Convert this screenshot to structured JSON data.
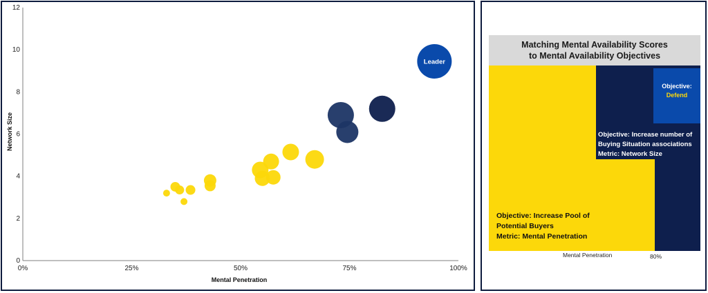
{
  "colors": {
    "yellow": "#fcd80a",
    "navy": "#0e1f4d",
    "blue": "#0a4aab",
    "gray": "#d9d9d9",
    "border": "#0d1b3e"
  },
  "chart_data": [
    {
      "type": "scatter",
      "xlabel": "Mental Penetration",
      "ylabel": "Network Size",
      "xlim": [
        0,
        100
      ],
      "ylim": [
        0,
        12
      ],
      "x_ticks": [
        "0%",
        "25%",
        "50%",
        "75%",
        "100%"
      ],
      "y_ticks": [
        "0",
        "2",
        "4",
        "6",
        "8",
        "10",
        "12"
      ],
      "grid": false,
      "points": [
        {
          "x": 33,
          "y": 3.2,
          "size": 5,
          "color": "#fcd80a"
        },
        {
          "x": 35,
          "y": 3.5,
          "size": 7,
          "color": "#fcd80a"
        },
        {
          "x": 36,
          "y": 3.35,
          "size": 6.5,
          "color": "#fcd80a"
        },
        {
          "x": 37,
          "y": 2.8,
          "size": 5,
          "color": "#fcd80a"
        },
        {
          "x": 38.5,
          "y": 3.35,
          "size": 7,
          "color": "#fcd80a"
        },
        {
          "x": 43,
          "y": 3.8,
          "size": 9,
          "color": "#fcd80a"
        },
        {
          "x": 43,
          "y": 3.55,
          "size": 8,
          "color": "#fcd80a"
        },
        {
          "x": 54.5,
          "y": 4.3,
          "size": 12,
          "color": "#fcd80a"
        },
        {
          "x": 55,
          "y": 3.9,
          "size": 11,
          "color": "#fcd80a"
        },
        {
          "x": 57,
          "y": 4.7,
          "size": 11.5,
          "color": "#fcd80a"
        },
        {
          "x": 57.5,
          "y": 3.95,
          "size": 10.5,
          "color": "#fcd80a"
        },
        {
          "x": 61.5,
          "y": 5.15,
          "size": 12,
          "color": "#fcd80a"
        },
        {
          "x": 67,
          "y": 4.8,
          "size": 13.5,
          "color": "#fcd80a"
        },
        {
          "x": 73,
          "y": 6.9,
          "size": 19,
          "color": "#1c3565"
        },
        {
          "x": 74.5,
          "y": 6.1,
          "size": 16,
          "color": "#1c3565"
        },
        {
          "x": 82.5,
          "y": 7.2,
          "size": 19,
          "color": "#0e1f4d"
        },
        {
          "x": 94.5,
          "y": 9.45,
          "size": 25,
          "color": "#0a4aab",
          "label": "Leader"
        }
      ]
    }
  ],
  "matrix": {
    "title_line1": "Matching Mental Availability Scores",
    "title_line2": "to Mental Availability Objectives",
    "yellow_label": [
      "Objective: Increase Pool of",
      "Potential Buyers",
      "Metric:  Mental Penetration"
    ],
    "navy_label": [
      "Objective: Increase number of",
      "Buying Situation associations",
      "Metric:  Network Size"
    ],
    "blue_label_line1": "Objective:",
    "blue_label_line2": "Defend",
    "x_axis_label": "Mental Penetration",
    "x_axis_marker": "80%"
  }
}
